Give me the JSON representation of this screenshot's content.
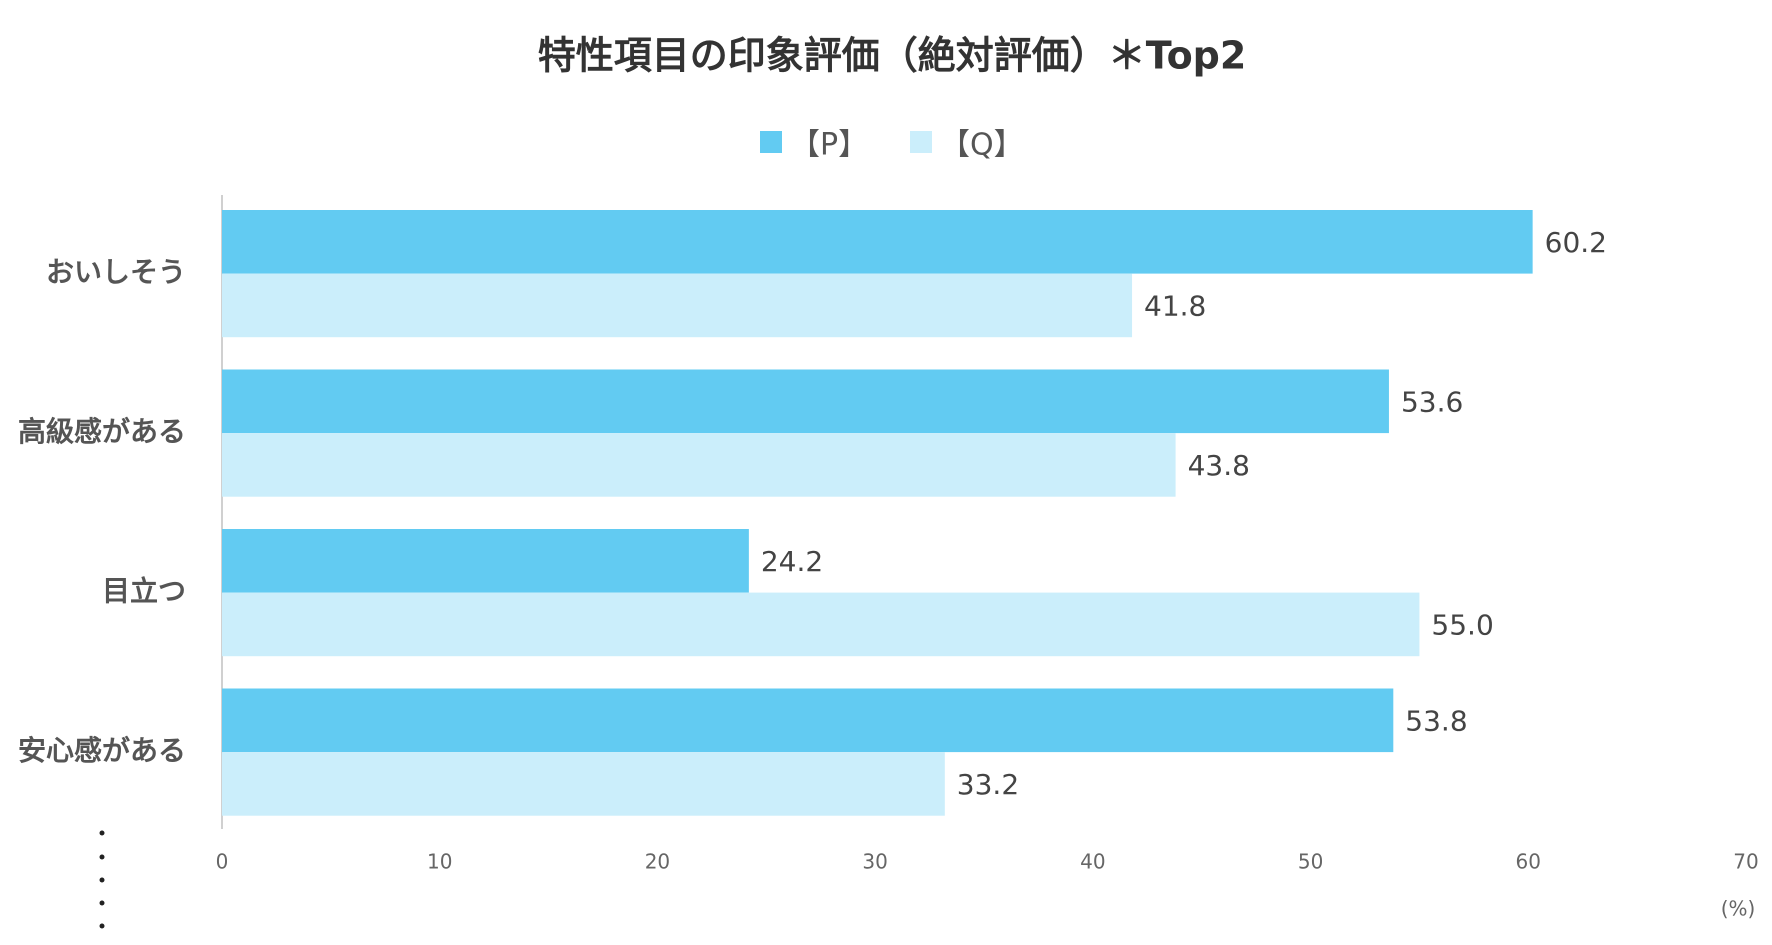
{
  "chart_data": {
    "type": "barh",
    "title": "特性項目の印象評価（絶対評価）＊Top2",
    "categories": [
      "おいしそう",
      "高級感がある",
      "目立つ",
      "安心感がある"
    ],
    "series": [
      {
        "name": "【P】",
        "color": "#62cbf2",
        "values": [
          60.2,
          53.6,
          24.2,
          53.8
        ],
        "value_labels": [
          "60.2",
          "53.6",
          "24.2",
          "53.8"
        ]
      },
      {
        "name": "【Q】",
        "color": "#cbeefb",
        "values": [
          41.8,
          43.8,
          55.0,
          33.2
        ],
        "value_labels": [
          "41.8",
          "43.8",
          "55.0",
          "33.2"
        ]
      }
    ],
    "xlim": [
      0,
      70
    ],
    "xticks": [
      0,
      10,
      20,
      30,
      40,
      50,
      60,
      70
    ],
    "x_unit": "(%)",
    "legend": "top"
  }
}
